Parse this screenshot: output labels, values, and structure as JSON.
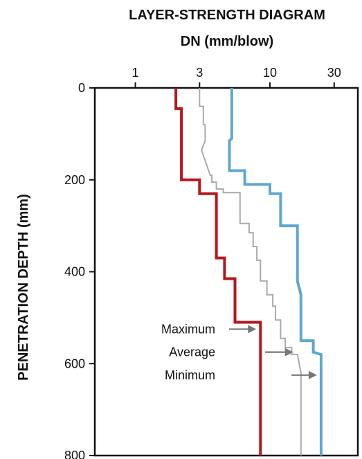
{
  "chart_data": {
    "type": "line",
    "title": "LAYER-STRENGTH DIAGRAM",
    "subtitle": "DN (mm/blow)",
    "xlabel": "DN (mm/blow)",
    "ylabel": "PENETRATION DEPTH (mm)",
    "x_scale": "log",
    "xlim": [
      0.5,
      45
    ],
    "ylim": [
      0,
      800
    ],
    "y_inverted": true,
    "x_ticks": [
      1,
      3,
      10,
      30
    ],
    "x_tick_labels": [
      "1",
      "3",
      "10",
      "30"
    ],
    "y_ticks": [
      0,
      200,
      400,
      600,
      800
    ],
    "y_tick_labels": [
      "0",
      "200",
      "400",
      "600",
      "800"
    ],
    "x_axis_position": "top",
    "grid": false,
    "legend": "annotations with arrows",
    "series": [
      {
        "name": "Maximum",
        "color": "#b5171c",
        "points": [
          [
            2,
            0
          ],
          [
            2,
            45
          ],
          [
            2.2,
            45
          ],
          [
            2.2,
            200
          ],
          [
            3,
            200
          ],
          [
            3,
            230
          ],
          [
            4,
            230
          ],
          [
            4,
            370
          ],
          [
            4.6,
            370
          ],
          [
            4.6,
            415
          ],
          [
            5.5,
            415
          ],
          [
            5.5,
            510
          ],
          [
            8.5,
            510
          ],
          [
            8.5,
            800
          ]
        ]
      },
      {
        "name": "Average",
        "color": "#aaaaaa",
        "points": [
          [
            3,
            0
          ],
          [
            3,
            40
          ],
          [
            3.2,
            40
          ],
          [
            3.2,
            80
          ],
          [
            3.3,
            80
          ],
          [
            3.3,
            115
          ],
          [
            3.1,
            135
          ],
          [
            3.6,
            190
          ],
          [
            3.7,
            190
          ],
          [
            3.7,
            205
          ],
          [
            4,
            205
          ],
          [
            4,
            220
          ],
          [
            4.5,
            220
          ],
          [
            4.5,
            228
          ],
          [
            6,
            228
          ],
          [
            6,
            295
          ],
          [
            7,
            295
          ],
          [
            7,
            315
          ],
          [
            7.5,
            315
          ],
          [
            7.5,
            345
          ],
          [
            8,
            345
          ],
          [
            8,
            375
          ],
          [
            8.5,
            375
          ],
          [
            8.5,
            420
          ],
          [
            9.5,
            420
          ],
          [
            9.5,
            450
          ],
          [
            10.5,
            450
          ],
          [
            10.5,
            475
          ],
          [
            11,
            475
          ],
          [
            11,
            505
          ],
          [
            12,
            505
          ],
          [
            12,
            545
          ],
          [
            13,
            545
          ],
          [
            13,
            565
          ],
          [
            14.5,
            565
          ],
          [
            14.5,
            580
          ],
          [
            16,
            580
          ],
          [
            17,
            620
          ],
          [
            17,
            800
          ]
        ]
      },
      {
        "name": "Minimum",
        "color": "#5fa7d0",
        "points": [
          [
            5.2,
            0
          ],
          [
            5.2,
            110
          ],
          [
            5,
            115
          ],
          [
            5,
            180
          ],
          [
            6.5,
            180
          ],
          [
            6.5,
            210
          ],
          [
            10,
            210
          ],
          [
            10,
            230
          ],
          [
            12,
            230
          ],
          [
            12,
            300
          ],
          [
            16,
            300
          ],
          [
            16,
            420
          ],
          [
            17,
            450
          ],
          [
            17,
            550
          ],
          [
            21,
            550
          ],
          [
            21,
            575
          ],
          [
            24,
            580
          ],
          [
            24,
            800
          ]
        ]
      }
    ],
    "annotations": [
      {
        "text": "Maximum",
        "series": "Maximum",
        "depth": 540
      },
      {
        "text": "Average",
        "series": "Average",
        "depth": 590
      },
      {
        "text": "Minimum",
        "series": "Minimum",
        "depth": 640
      }
    ]
  }
}
